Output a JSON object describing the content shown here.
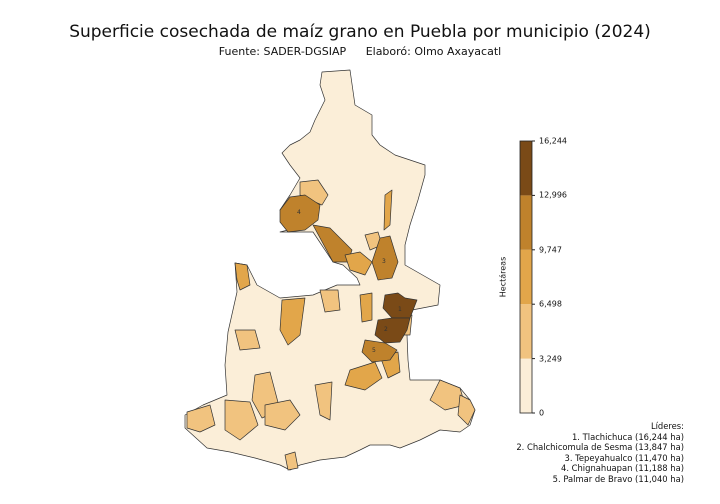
{
  "title": "Superficie cosechada de maíz grano en Puebla por municipio (2024)",
  "source": "Fuente: SADER-DGSIAP",
  "author": "Elaboró: Olmo Axayacatl",
  "colorbar": {
    "label": "Hectáreas",
    "ticks": [
      "16,244",
      "12,996",
      "9,747",
      "6,498",
      "3,249",
      "0"
    ],
    "bin_colors": [
      "#fbeed8",
      "#f1c37f",
      "#e2a64a",
      "#bf822c",
      "#7a4a17"
    ]
  },
  "map": {
    "region": "Puebla",
    "default_color": "#fbeed8",
    "leader_markers": [
      "1",
      "2",
      "3",
      "4",
      "5"
    ]
  },
  "leaders": {
    "heading": "Líderes:",
    "items": [
      "1. Tlachichuca (16,244 ha)",
      "2. Chalchicomula de Sesma (13,847 ha)",
      "3. Tepeyahualco (11,470 ha)",
      "4. Chignahuapan (11,188 ha)",
      "5. Palmar de Bravo (11,040 ha)"
    ]
  }
}
